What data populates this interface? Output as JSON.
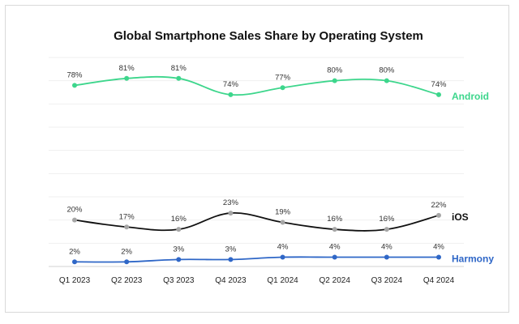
{
  "chart_data": {
    "type": "line",
    "title": "Global Smartphone Sales Share by Operating System",
    "categories": [
      "Q1 2023",
      "Q2 2023",
      "Q3 2023",
      "Q4 2023",
      "Q1 2024",
      "Q2 2024",
      "Q3 2024",
      "Q4 2024"
    ],
    "ylim": [
      0,
      90
    ],
    "grid": true,
    "legend": "right, inline at series end",
    "series": [
      {
        "name": "Android",
        "values": [
          78,
          81,
          81,
          74,
          77,
          80,
          80,
          74
        ],
        "labels": [
          "78%",
          "81%",
          "81%",
          "74%",
          "77%",
          "80%",
          "80%",
          "74%"
        ],
        "color": "#3dd68c",
        "marker_color": "#3dd68c"
      },
      {
        "name": "iOS",
        "values": [
          20,
          17,
          16,
          23,
          19,
          16,
          16,
          22
        ],
        "labels": [
          "20%",
          "17%",
          "16%",
          "23%",
          "19%",
          "16%",
          "16%",
          "22%"
        ],
        "color": "#111111",
        "marker_color": "#a6a6a6"
      },
      {
        "name": "Harmony",
        "values": [
          2,
          2,
          3,
          3,
          4,
          4,
          4,
          4
        ],
        "labels": [
          "2%",
          "2%",
          "3%",
          "3%",
          "4%",
          "4%",
          "4%",
          "4%"
        ],
        "color": "#2f67c7",
        "marker_color": "#2f67c7"
      }
    ]
  }
}
